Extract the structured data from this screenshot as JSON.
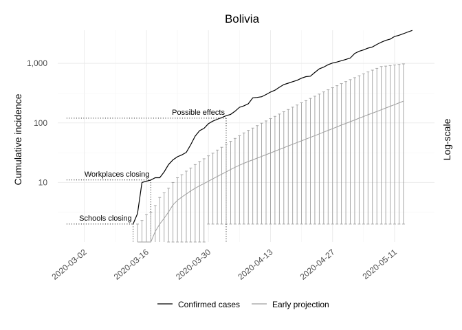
{
  "chart_data": {
    "type": "line",
    "title": "Bolivia",
    "ylabel": "Cumulative incidence",
    "y_scale_note": "Log-scale",
    "y_scale": "log",
    "ylim": [
      1,
      3600
    ],
    "xlim": [
      "2020-02-25",
      "2020-05-20"
    ],
    "x_ticks": [
      "2020-03-02",
      "2020-03-16",
      "2020-03-30",
      "2020-04-13",
      "2020-04-27",
      "2020-05-11"
    ],
    "y_ticks": [
      10,
      100,
      1000
    ],
    "y_tick_labels": [
      "10",
      "100",
      "1,000"
    ],
    "grid": true,
    "legend": {
      "position": "bottom",
      "items": [
        {
          "label": "Confirmed cases",
          "color": "#000000"
        },
        {
          "label": "Early projection",
          "color": "#9e9e9e"
        }
      ]
    },
    "annotations": [
      {
        "label": "Schools closing",
        "date": "2020-03-13",
        "value": 2
      },
      {
        "label": "Workplaces closing",
        "date": "2020-03-17",
        "value": 11
      },
      {
        "label": "Possible effects",
        "date": "2020-04-03",
        "value": 120
      }
    ],
    "series": [
      {
        "name": "Confirmed cases",
        "color": "#000000",
        "points": [
          [
            "2020-03-13",
            2
          ],
          [
            "2020-03-14",
            3
          ],
          [
            "2020-03-15",
            10
          ],
          [
            "2020-03-17",
            11
          ],
          [
            "2020-03-18",
            12
          ],
          [
            "2020-03-19",
            12
          ],
          [
            "2020-03-20",
            15
          ],
          [
            "2020-03-21",
            20
          ],
          [
            "2020-03-22",
            24
          ],
          [
            "2020-03-23",
            27
          ],
          [
            "2020-03-24",
            29
          ],
          [
            "2020-03-25",
            32
          ],
          [
            "2020-03-26",
            43
          ],
          [
            "2020-03-27",
            60
          ],
          [
            "2020-03-28",
            74
          ],
          [
            "2020-03-29",
            81
          ],
          [
            "2020-03-30",
            97
          ],
          [
            "2020-03-31",
            107
          ],
          [
            "2020-04-01",
            115
          ],
          [
            "2020-04-02",
            123
          ],
          [
            "2020-04-03",
            132
          ],
          [
            "2020-04-04",
            139
          ],
          [
            "2020-04-05",
            157
          ],
          [
            "2020-04-06",
            183
          ],
          [
            "2020-04-07",
            194
          ],
          [
            "2020-04-08",
            210
          ],
          [
            "2020-04-09",
            264
          ],
          [
            "2020-04-10",
            268
          ],
          [
            "2020-04-11",
            275
          ],
          [
            "2020-04-12",
            300
          ],
          [
            "2020-04-13",
            330
          ],
          [
            "2020-04-14",
            354
          ],
          [
            "2020-04-15",
            397
          ],
          [
            "2020-04-16",
            441
          ],
          [
            "2020-04-17",
            465
          ],
          [
            "2020-04-18",
            493
          ],
          [
            "2020-04-19",
            520
          ],
          [
            "2020-04-20",
            564
          ],
          [
            "2020-04-21",
            598
          ],
          [
            "2020-04-22",
            609
          ],
          [
            "2020-04-23",
            703
          ],
          [
            "2020-04-24",
            807
          ],
          [
            "2020-04-25",
            866
          ],
          [
            "2020-04-26",
            950
          ],
          [
            "2020-04-27",
            1014
          ],
          [
            "2020-04-28",
            1053
          ],
          [
            "2020-04-29",
            1110
          ],
          [
            "2020-04-30",
            1167
          ],
          [
            "2020-05-01",
            1229
          ],
          [
            "2020-05-02",
            1470
          ],
          [
            "2020-05-03",
            1594
          ],
          [
            "2020-05-04",
            1681
          ],
          [
            "2020-05-05",
            1802
          ],
          [
            "2020-05-06",
            1886
          ],
          [
            "2020-05-07",
            2081
          ],
          [
            "2020-05-08",
            2266
          ],
          [
            "2020-05-09",
            2437
          ],
          [
            "2020-05-10",
            2556
          ],
          [
            "2020-05-11",
            2831
          ],
          [
            "2020-05-12",
            2964
          ],
          [
            "2020-05-13",
            3148
          ],
          [
            "2020-05-14",
            3372
          ],
          [
            "2020-05-15",
            3577
          ]
        ]
      },
      {
        "name": "Early projection",
        "color": "#9e9e9e",
        "start_date": "2020-03-14",
        "median": [
          0.6,
          0.8,
          1.0,
          1.0,
          1.5,
          2.0,
          2.5,
          3.2,
          4.2,
          5.0,
          5.7,
          6.4,
          7.2,
          8.0,
          8.8,
          9.6,
          10.5,
          11.5,
          12.6,
          13.8,
          15.0,
          16.5,
          18.0,
          19.5,
          21.0,
          22.5,
          24.0,
          25.6,
          27.4,
          29.3,
          31.3,
          33.5,
          35.8,
          38.3,
          41.0,
          43.8,
          46.8,
          50.0,
          53.5,
          57.2,
          61.2,
          65.4,
          70.0,
          75.0,
          80.0,
          85.8,
          92.0,
          98.0,
          105.0,
          112.0,
          120.0,
          128.0,
          137.0,
          146.0,
          156.0,
          166.0,
          178.0,
          190.0,
          203.0,
          217.0,
          232.0
        ],
        "lower": [
          0.5,
          0.5,
          0.5,
          0.5,
          0.5,
          0.5,
          0.5,
          1.0,
          1.0,
          1.0,
          1.0,
          1.0,
          1.0,
          1.0,
          1.0,
          1.0,
          2.0,
          2.0,
          2.0,
          2.0,
          2.0,
          2.0,
          2.0,
          2.0,
          2.0,
          2.0,
          2.0,
          2.0,
          2.0,
          2.0,
          2.0,
          2.0,
          2.0,
          2.0,
          2.0,
          2.0,
          2.0,
          2.0,
          2.0,
          2.0,
          2.0,
          2.0,
          2.0,
          2.0,
          2.0,
          2.0,
          2.0,
          2.0,
          2.0,
          2.0,
          2.0,
          2.0,
          2.0,
          2.0,
          2.0,
          2.0,
          2.0,
          2.0,
          2.0,
          2.0,
          2.0
        ],
        "upper": [
          2.0,
          2.3,
          2.9,
          3.1,
          4.1,
          5.6,
          6.7,
          8.0,
          10.0,
          12.0,
          13.5,
          15.5,
          17.5,
          20.0,
          22.5,
          25.0,
          28.0,
          31.0,
          35.0,
          39.0,
          44.0,
          49.0,
          55.0,
          61.0,
          68.0,
          75.0,
          82.0,
          90.0,
          99.0,
          108.0,
          118.0,
          129.0,
          141.0,
          154.0,
          168.0,
          184.0,
          200.0,
          218.0,
          237.0,
          258.0,
          281.0,
          305.0,
          332.0,
          360.0,
          390.0,
          422.0,
          457.0,
          494.0,
          533.0,
          576.0,
          620.0,
          668.0,
          718.0,
          770.0,
          826.0,
          885.0,
          900.0,
          920.0,
          940.0,
          960.0,
          980.0
        ]
      }
    ]
  }
}
